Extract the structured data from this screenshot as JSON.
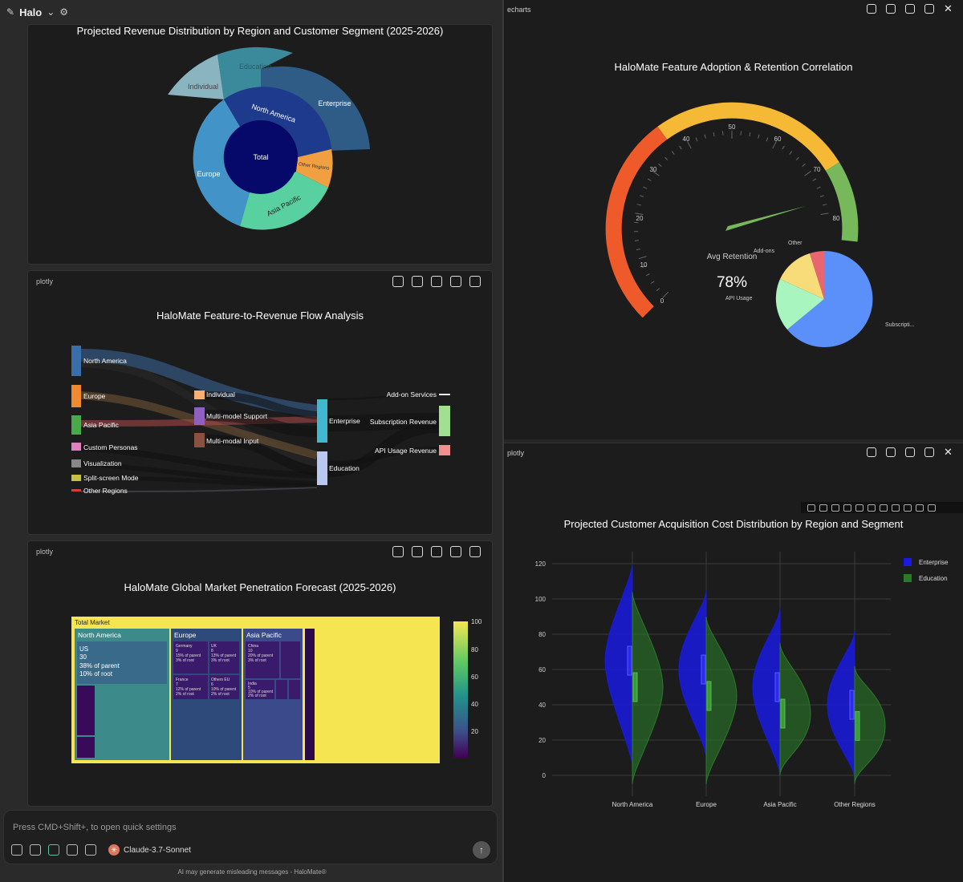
{
  "app": {
    "title": "Halo",
    "disclaimer": "AI may generate misleading messages - HaloMate®"
  },
  "composer": {
    "placeholder": "Press CMD+Shift+, to open quick settings",
    "model": "Claude-3.7-Sonnet",
    "model_initial": "✳"
  },
  "sunburst": {
    "title": "Projected Revenue Distribution by Region and Customer Segment (2025-2026)",
    "center": "Total",
    "regions": [
      "North America",
      "Europe",
      "Asia Pacific",
      "Other Regions"
    ],
    "segments": [
      "Individual",
      "Education",
      "Enterprise"
    ]
  },
  "sankey": {
    "lib": "plotly",
    "title": "HaloMate Feature-to-Revenue Flow Analysis",
    "nodes": [
      "North America",
      "Europe",
      "Asia Pacific",
      "Custom Personas",
      "Visualization",
      "Split-screen Mode",
      "Other Regions",
      "Individual",
      "Multi-model Support",
      "Multi-modal Input",
      "Enterprise",
      "Education",
      "Add-on Services",
      "Subscription Revenue",
      "API Usage Revenue"
    ]
  },
  "treemap": {
    "lib": "plotly",
    "title": "HaloMate Global Market Penetration Forecast (2025-2026)",
    "root": "Total Market",
    "na": "North America",
    "eu": "Europe",
    "ap": "Asia Pacific",
    "us": [
      "US",
      "30",
      "38% of parent",
      "10% of root"
    ],
    "germany": [
      "Germany",
      "9",
      "15% of parent",
      "3% of root"
    ],
    "uk": [
      "UK",
      "8",
      "13% of parent",
      "3% of root"
    ],
    "france": [
      "France",
      "7",
      "12% of parent",
      "2% of root"
    ],
    "otherseu": [
      "Others EU",
      "6",
      "10% of parent",
      "2% of root"
    ],
    "china": [
      "China",
      "10",
      "20% of parent",
      "3% of root"
    ],
    "india": [
      "India",
      "5",
      "10% of parent",
      "2% of root"
    ],
    "colorbar": [
      "100",
      "80",
      "60",
      "40",
      "20"
    ]
  },
  "gauge": {
    "lib": "echarts",
    "title": "HaloMate Feature Adoption & Retention Correlation",
    "label": "Avg Retention",
    "value_text": "78%",
    "value": 78,
    "ticks": [
      "0",
      "10",
      "20",
      "30",
      "40",
      "50",
      "60",
      "70",
      "80"
    ],
    "pie_labels": [
      "Other",
      "Add-ons",
      "API Usage",
      "Subscripti..."
    ]
  },
  "violin": {
    "lib": "plotly",
    "title": "Projected Customer Acquisition Cost Distribution by Region and Segment",
    "legend": [
      "Enterprise",
      "Education"
    ],
    "categories": [
      "North America",
      "Europe",
      "Asia Pacific",
      "Other Regions"
    ],
    "yticks": [
      "120",
      "100",
      "80",
      "60",
      "40",
      "20",
      "0"
    ]
  },
  "chart_data": [
    {
      "type": "sunburst",
      "title": "Projected Revenue Distribution by Region and Customer Segment (2025-2026)",
      "labels": [
        "Total",
        "North America",
        "Europe",
        "Asia Pacific",
        "Other Regions",
        "Individual",
        "Education",
        "Enterprise"
      ]
    },
    {
      "type": "sankey",
      "title": "HaloMate Feature-to-Revenue Flow Analysis"
    },
    {
      "type": "treemap",
      "title": "HaloMate Global Market Penetration Forecast (2025-2026)",
      "values": {
        "US": 30,
        "Germany": 9,
        "UK": 8,
        "France": 7,
        "Others EU": 6,
        "China": 10,
        "India": 5
      }
    },
    {
      "type": "gauge",
      "title": "HaloMate Feature Adoption & Retention Correlation",
      "value": 78,
      "range": [
        0,
        100
      ]
    },
    {
      "type": "violin",
      "title": "Projected Customer Acquisition Cost Distribution by Region and Segment",
      "categories": [
        "North America",
        "Europe",
        "Asia Pacific",
        "Other Regions"
      ],
      "ylim": [
        0,
        120
      ],
      "series": [
        {
          "name": "Enterprise",
          "medians": [
            65,
            60,
            50,
            40
          ]
        },
        {
          "name": "Education",
          "medians": [
            50,
            45,
            35,
            28
          ]
        }
      ]
    }
  ]
}
